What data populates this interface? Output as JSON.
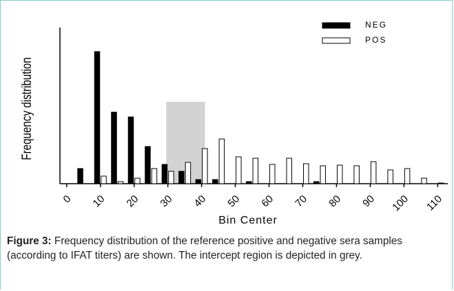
{
  "chart_data": {
    "type": "bar",
    "ylabel": "Frequency distribution",
    "xlabel": "Bin Center",
    "x": [
      5,
      10,
      15,
      20,
      25,
      30,
      35,
      40,
      45,
      50,
      55,
      60,
      65,
      70,
      75,
      80,
      85,
      90,
      95,
      100,
      105,
      110
    ],
    "series": [
      {
        "name": "NEG",
        "color": "#000000",
        "values": [
          22,
          192,
          104,
          97,
          54,
          28,
          18,
          6,
          6,
          0,
          3,
          0,
          0,
          0,
          3,
          0,
          0,
          0,
          0,
          0,
          0,
          0
        ]
      },
      {
        "name": "POS",
        "color": "#ffffff",
        "values": [
          0,
          11,
          3,
          8,
          22,
          18,
          31,
          51,
          65,
          39,
          37,
          28,
          37,
          29,
          26,
          27,
          26,
          32,
          20,
          22,
          8,
          1
        ]
      }
    ],
    "xlim": [
      -2,
      113
    ],
    "xticks": [
      0,
      10,
      20,
      30,
      40,
      50,
      60,
      70,
      80,
      90,
      100,
      110
    ],
    "ylim": [
      0,
      227
    ],
    "intercept_region": {
      "x": [
        29.5,
        41
      ],
      "y": [
        0,
        119
      ]
    },
    "legend": "top-right"
  },
  "caption": {
    "label": "Figure 3:",
    "text": " Frequency distribution of the reference positive and negative sera samples (according to IFAT titers) are shown. The intercept region is depicted in grey."
  }
}
